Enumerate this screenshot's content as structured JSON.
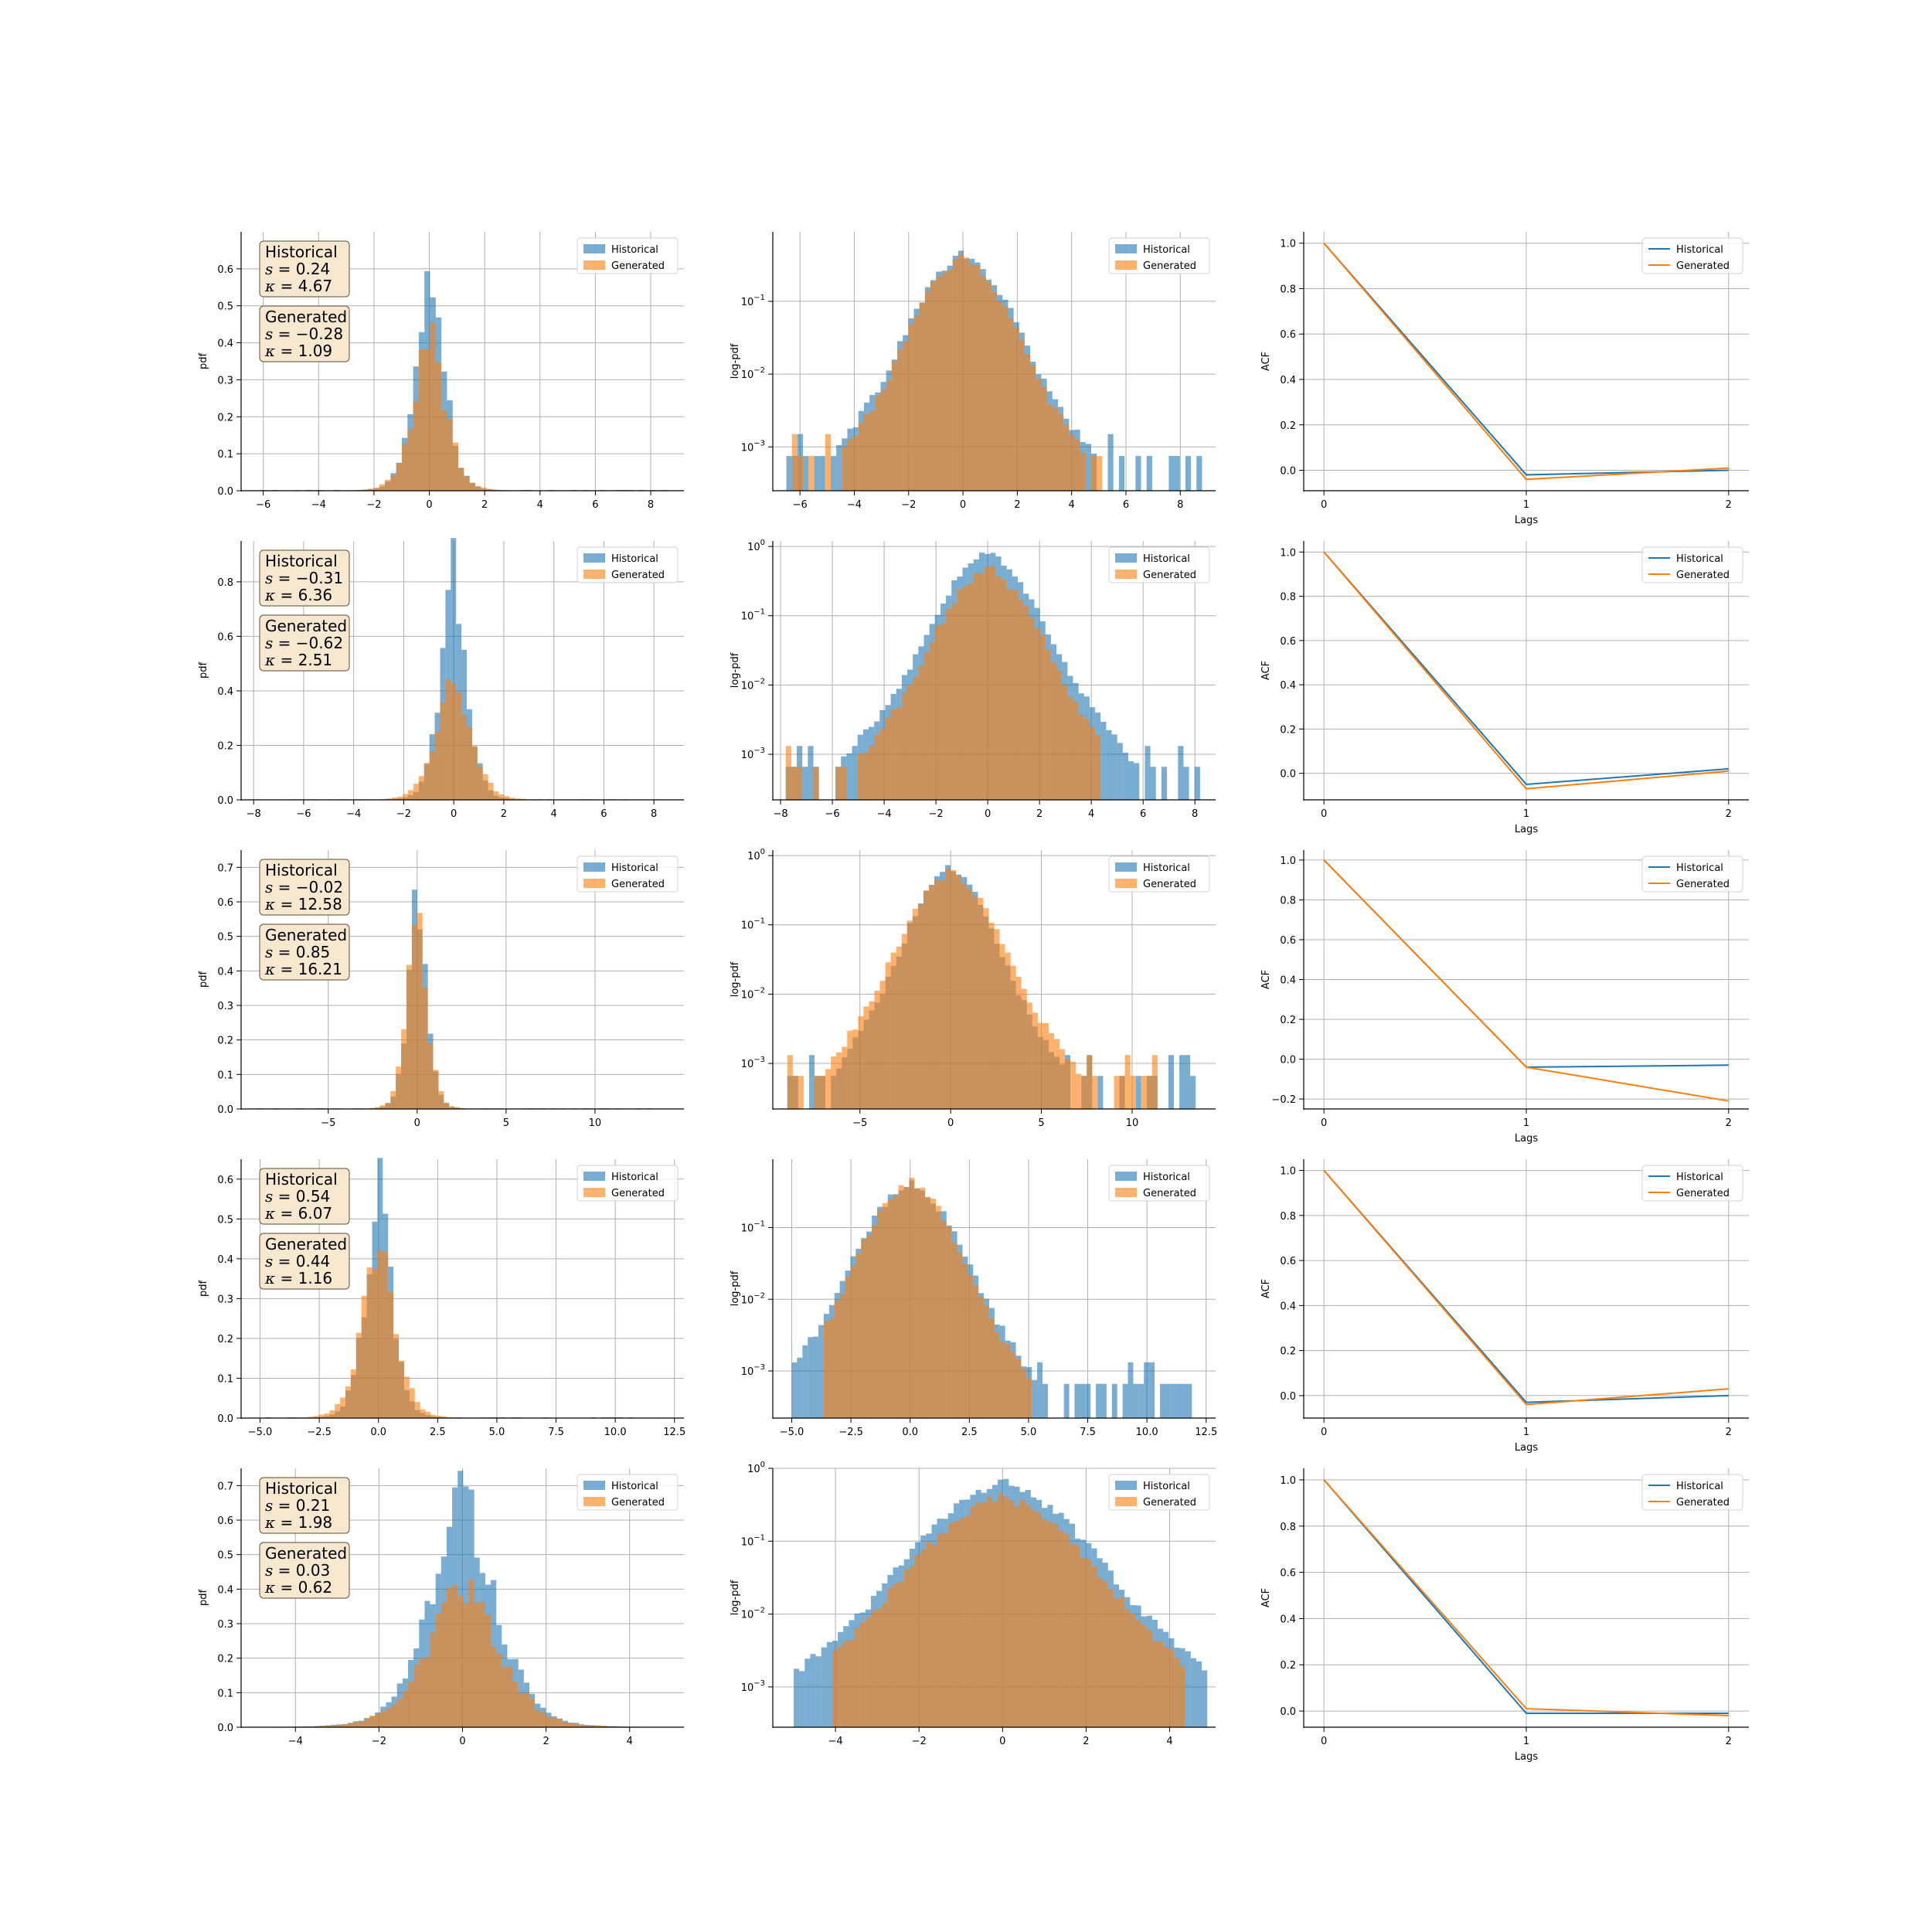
{
  "colors": {
    "historical": "#1f77b4",
    "generated": "#ff7f0e",
    "grid": "#b0b0b0",
    "stats_box_fill": "#f7e9cf",
    "stats_box_edge": "#7a6a55"
  },
  "chart_data": [
    {
      "id": "r1-pdf",
      "type": "bar",
      "row": 0,
      "col": 0,
      "yscale": "linear",
      "xlabel": "",
      "ylabel": "pdf",
      "xlim": [
        -6.8,
        9.2
      ],
      "ylim": [
        0,
        0.7
      ],
      "xticks": [
        -6,
        -4,
        -2,
        0,
        2,
        4,
        6,
        8
      ],
      "yticks": [
        0.0,
        0.1,
        0.2,
        0.3,
        0.4,
        0.5,
        0.6
      ],
      "legend": [
        "Historical",
        "Generated"
      ],
      "legend_position": "upper-right",
      "stats": [
        {
          "name": "Historical",
          "skew": "0.24",
          "kurt": "4.67"
        },
        {
          "name": "Generated",
          "skew": "−0.28",
          "kurt": "1.09"
        }
      ],
      "series": [
        {
          "name": "Historical",
          "dist": {
            "mu": 0.0,
            "sigma": 0.55,
            "peak": 0.66,
            "tail_lo": -6.5,
            "tail_hi": 8.8
          }
        },
        {
          "name": "Generated",
          "dist": {
            "mu": 0.0,
            "sigma": 0.62,
            "peak": 0.45,
            "tail_lo": -5.2,
            "tail_hi": 3.6
          }
        }
      ]
    },
    {
      "id": "r1-logpdf",
      "type": "bar",
      "row": 0,
      "col": 1,
      "yscale": "log",
      "xlabel": "",
      "ylabel": "log-pdf",
      "xlim": [
        -7.0,
        9.3
      ],
      "ylim": [
        0.00025,
        0.9
      ],
      "xticks": [
        -6,
        -4,
        -2,
        0,
        2,
        4,
        6,
        8
      ],
      "yticks": [
        "10^{-3}",
        "10^{-2}",
        "10^{-1}"
      ],
      "legend": [
        "Historical",
        "Generated"
      ],
      "legend_position": "upper-right",
      "series": [
        {
          "name": "Historical",
          "dist": {
            "mu": 0.0,
            "sigma": 0.95,
            "peak": 0.45,
            "tail_lo": -6.5,
            "tail_hi": 8.8
          }
        },
        {
          "name": "Generated",
          "dist": {
            "mu": 0.0,
            "sigma": 0.9,
            "peak": 0.43,
            "tail_lo": -6.0,
            "tail_hi": 5.0
          }
        }
      ]
    },
    {
      "id": "r1-acf",
      "type": "line",
      "row": 0,
      "col": 2,
      "yscale": "linear",
      "xlabel": "Lags",
      "ylabel": "ACF",
      "xlim": [
        -0.1,
        2.1
      ],
      "ylim": [
        -0.09,
        1.05
      ],
      "xticks": [
        0,
        1,
        2
      ],
      "yticks": [
        0.0,
        0.2,
        0.4,
        0.6,
        0.8,
        1.0
      ],
      "legend": [
        "Historical",
        "Generated"
      ],
      "legend_position": "upper-right",
      "x": [
        0,
        1,
        2
      ],
      "series": [
        {
          "name": "Historical",
          "values": [
            1.0,
            -0.02,
            0.0
          ]
        },
        {
          "name": "Generated",
          "values": [
            1.0,
            -0.04,
            0.01
          ]
        }
      ]
    },
    {
      "id": "r2-pdf",
      "type": "bar",
      "row": 1,
      "col": 0,
      "yscale": "linear",
      "xlabel": "",
      "ylabel": "pdf",
      "xlim": [
        -8.5,
        9.2
      ],
      "ylim": [
        0,
        0.95
      ],
      "xticks": [
        -8,
        -6,
        -4,
        -2,
        0,
        2,
        4,
        6,
        8
      ],
      "yticks": [
        0.0,
        0.2,
        0.4,
        0.6,
        0.8
      ],
      "legend": [
        "Historical",
        "Generated"
      ],
      "legend_position": "upper-right",
      "stats": [
        {
          "name": "Historical",
          "skew": "−0.31",
          "kurt": "6.36"
        },
        {
          "name": "Generated",
          "skew": "−0.62",
          "kurt": "2.51"
        }
      ],
      "series": [
        {
          "name": "Historical",
          "dist": {
            "mu": 0.0,
            "sigma": 0.55,
            "peak": 0.89,
            "tail_lo": -7.8,
            "tail_hi": 8.2
          }
        },
        {
          "name": "Generated",
          "dist": {
            "mu": 0.0,
            "sigma": 0.72,
            "peak": 0.5,
            "tail_lo": -6.5,
            "tail_hi": 4.5
          }
        }
      ]
    },
    {
      "id": "r2-logpdf",
      "type": "bar",
      "row": 1,
      "col": 1,
      "yscale": "log",
      "xlabel": "",
      "ylabel": "log-pdf",
      "xlim": [
        -8.3,
        8.8
      ],
      "ylim": [
        0.00022,
        1.2
      ],
      "xticks": [
        -8,
        -6,
        -4,
        -2,
        0,
        2,
        4,
        6,
        8
      ],
      "yticks": [
        "10^{-3}",
        "10^{-2}",
        "10^{-1}",
        "10^{0}"
      ],
      "legend": [
        "Historical",
        "Generated"
      ],
      "legend_position": "upper-right",
      "series": [
        {
          "name": "Historical",
          "dist": {
            "mu": 0.0,
            "sigma": 1.0,
            "peak": 0.85,
            "tail_lo": -7.8,
            "tail_hi": 8.2
          }
        },
        {
          "name": "Generated",
          "dist": {
            "mu": 0.0,
            "sigma": 0.98,
            "peak": 0.5,
            "tail_lo": -7.6,
            "tail_hi": 4.2
          }
        }
      ]
    },
    {
      "id": "r2-acf",
      "type": "line",
      "row": 1,
      "col": 2,
      "yscale": "linear",
      "xlabel": "Lags",
      "ylabel": "ACF",
      "xlim": [
        -0.1,
        2.1
      ],
      "ylim": [
        -0.12,
        1.05
      ],
      "xticks": [
        0,
        1,
        2
      ],
      "yticks": [
        0.0,
        0.2,
        0.4,
        0.6,
        0.8,
        1.0
      ],
      "legend": [
        "Historical",
        "Generated"
      ],
      "legend_position": "upper-right",
      "x": [
        0,
        1,
        2
      ],
      "series": [
        {
          "name": "Historical",
          "values": [
            1.0,
            -0.05,
            0.02
          ]
        },
        {
          "name": "Generated",
          "values": [
            1.0,
            -0.07,
            0.01
          ]
        }
      ]
    },
    {
      "id": "r3-pdf",
      "type": "bar",
      "row": 2,
      "col": 0,
      "yscale": "linear",
      "xlabel": "",
      "ylabel": "pdf",
      "xlim": [
        -9.9,
        15.0
      ],
      "ylim": [
        0,
        0.75
      ],
      "xticks": [
        -5,
        0,
        5,
        10
      ],
      "yticks": [
        0.0,
        0.1,
        0.2,
        0.3,
        0.4,
        0.5,
        0.6,
        0.7
      ],
      "legend": [
        "Historical",
        "Generated"
      ],
      "legend_position": "upper-right",
      "stats": [
        {
          "name": "Historical",
          "skew": "−0.02",
          "kurt": "12.58"
        },
        {
          "name": "Generated",
          "skew": "0.85",
          "kurt": "16.21"
        }
      ],
      "series": [
        {
          "name": "Historical",
          "dist": {
            "mu": 0.0,
            "sigma": 0.55,
            "peak": 0.69,
            "tail_lo": -9.0,
            "tail_hi": 13.5
          }
        },
        {
          "name": "Generated",
          "dist": {
            "mu": 0.0,
            "sigma": 0.6,
            "peak": 0.6,
            "tail_lo": -7.0,
            "tail_hi": 11.0
          }
        }
      ]
    },
    {
      "id": "r3-logpdf",
      "type": "bar",
      "row": 2,
      "col": 1,
      "yscale": "log",
      "xlabel": "",
      "ylabel": "log-pdf",
      "xlim": [
        -9.8,
        14.6
      ],
      "ylim": [
        0.00022,
        1.2
      ],
      "xticks": [
        -5,
        0,
        5,
        10
      ],
      "yticks": [
        "10^{-3}",
        "10^{-2}",
        "10^{-1}",
        "10^{0}"
      ],
      "legend": [
        "Historical",
        "Generated"
      ],
      "legend_position": "upper-right",
      "series": [
        {
          "name": "Historical",
          "dist": {
            "mu": 0.0,
            "sigma": 1.15,
            "peak": 0.7,
            "tail_lo": -9.0,
            "tail_hi": 13.5
          }
        },
        {
          "name": "Generated",
          "dist": {
            "mu": 0.0,
            "sigma": 1.3,
            "peak": 0.62,
            "tail_lo": -8.8,
            "tail_hi": 11.0
          }
        }
      ]
    },
    {
      "id": "r3-acf",
      "type": "line",
      "row": 2,
      "col": 2,
      "yscale": "linear",
      "xlabel": "Lags",
      "ylabel": "ACF",
      "xlim": [
        -0.1,
        2.1
      ],
      "ylim": [
        -0.25,
        1.05
      ],
      "xticks": [
        0,
        1,
        2
      ],
      "yticks": [
        -0.2,
        0.0,
        0.2,
        0.4,
        0.6,
        0.8,
        1.0
      ],
      "legend": [
        "Historical",
        "Generated"
      ],
      "legend_position": "upper-right",
      "x": [
        0,
        1,
        2
      ],
      "series": [
        {
          "name": "Historical",
          "values": [
            1.0,
            -0.04,
            -0.03
          ]
        },
        {
          "name": "Generated",
          "values": [
            1.0,
            -0.04,
            -0.21
          ]
        }
      ]
    },
    {
      "id": "r4-pdf",
      "type": "bar",
      "row": 3,
      "col": 0,
      "yscale": "linear",
      "xlabel": "",
      "ylabel": "pdf",
      "xlim": [
        -5.8,
        12.9
      ],
      "ylim": [
        0,
        0.65
      ],
      "xticks": [
        -5.0,
        -2.5,
        0.0,
        2.5,
        5.0,
        7.5,
        10.0,
        12.5
      ],
      "xtick_labels": [
        "−5.0",
        "−2.5",
        "0.0",
        "2.5",
        "5.0",
        "7.5",
        "10.0",
        "12.5"
      ],
      "yticks": [
        0.0,
        0.1,
        0.2,
        0.3,
        0.4,
        0.5,
        0.6
      ],
      "legend": [
        "Historical",
        "Generated"
      ],
      "legend_position": "upper-right",
      "stats": [
        {
          "name": "Historical",
          "skew": "0.54",
          "kurt": "6.07"
        },
        {
          "name": "Generated",
          "skew": "0.44",
          "kurt": "1.16"
        }
      ],
      "series": [
        {
          "name": "Historical",
          "dist": {
            "mu": 0.0,
            "sigma": 0.6,
            "peak": 0.62,
            "tail_lo": -5.0,
            "tail_hi": 11.9
          }
        },
        {
          "name": "Generated",
          "dist": {
            "mu": 0.0,
            "sigma": 0.75,
            "peak": 0.46,
            "tail_lo": -3.5,
            "tail_hi": 5.5
          }
        }
      ]
    },
    {
      "id": "r4-logpdf",
      "type": "bar",
      "row": 3,
      "col": 1,
      "yscale": "log",
      "xlabel": "",
      "ylabel": "log-pdf",
      "xlim": [
        -5.8,
        12.9
      ],
      "ylim": [
        0.00022,
        0.9
      ],
      "xticks": [
        -5.0,
        -2.5,
        0.0,
        2.5,
        5.0,
        7.5,
        10.0,
        12.5
      ],
      "xtick_labels": [
        "−5.0",
        "−2.5",
        "0.0",
        "2.5",
        "5.0",
        "7.5",
        "10.0",
        "12.5"
      ],
      "yticks": [
        "10^{-3}",
        "10^{-2}",
        "10^{-1}"
      ],
      "legend": [
        "Historical",
        "Generated"
      ],
      "legend_position": "upper-right",
      "series": [
        {
          "name": "Historical",
          "dist": {
            "mu": 0.0,
            "sigma": 1.05,
            "peak": 0.46,
            "tail_lo": -5.0,
            "tail_hi": 11.9
          }
        },
        {
          "name": "Generated",
          "dist": {
            "mu": 0.0,
            "sigma": 1.0,
            "peak": 0.45,
            "tail_lo": -3.5,
            "tail_hi": 5.0
          }
        }
      ]
    },
    {
      "id": "r4-acf",
      "type": "line",
      "row": 3,
      "col": 2,
      "yscale": "linear",
      "xlabel": "Lags",
      "ylabel": "ACF",
      "xlim": [
        -0.1,
        2.1
      ],
      "ylim": [
        -0.1,
        1.05
      ],
      "xticks": [
        0,
        1,
        2
      ],
      "yticks": [
        0.0,
        0.2,
        0.4,
        0.6,
        0.8,
        1.0
      ],
      "legend": [
        "Historical",
        "Generated"
      ],
      "legend_position": "upper-right",
      "x": [
        0,
        1,
        2
      ],
      "series": [
        {
          "name": "Historical",
          "values": [
            1.0,
            -0.03,
            0.0
          ]
        },
        {
          "name": "Generated",
          "values": [
            1.0,
            -0.04,
            0.03
          ]
        }
      ]
    },
    {
      "id": "r5-pdf",
      "type": "bar",
      "row": 4,
      "col": 0,
      "yscale": "linear",
      "xlabel": "",
      "ylabel": "pdf",
      "xlim": [
        -5.3,
        5.3
      ],
      "ylim": [
        0,
        0.75
      ],
      "xticks": [
        -4,
        -2,
        0,
        2,
        4
      ],
      "yticks": [
        0.0,
        0.1,
        0.2,
        0.3,
        0.4,
        0.5,
        0.6,
        0.7
      ],
      "legend": [
        "Historical",
        "Generated"
      ],
      "legend_position": "upper-right",
      "stats": [
        {
          "name": "Historical",
          "skew": "0.21",
          "kurt": "1.98"
        },
        {
          "name": "Generated",
          "skew": "0.03",
          "kurt": "0.62"
        }
      ],
      "series": [
        {
          "name": "Historical",
          "dist": {
            "mu": 0.0,
            "sigma": 0.85,
            "peak": 0.69,
            "tail_lo": -5.0,
            "tail_hi": 4.9
          }
        },
        {
          "name": "Generated",
          "dist": {
            "mu": 0.0,
            "sigma": 0.92,
            "peak": 0.43,
            "tail_lo": -4.5,
            "tail_hi": 4.5
          }
        }
      ]
    },
    {
      "id": "r5-logpdf",
      "type": "bar",
      "row": 4,
      "col": 1,
      "yscale": "log",
      "xlabel": "",
      "ylabel": "log-pdf",
      "xlim": [
        -5.5,
        5.1
      ],
      "ylim": [
        0.00028,
        1.0
      ],
      "xticks": [
        -4,
        -2,
        0,
        2,
        4
      ],
      "yticks": [
        "10^{-3}",
        "10^{-2}",
        "10^{-1}",
        "10^{0}"
      ],
      "legend": [
        "Historical",
        "Generated"
      ],
      "legend_position": "upper-right",
      "series": [
        {
          "name": "Historical",
          "dist": {
            "mu": 0.0,
            "sigma": 1.05,
            "peak": 0.65,
            "tail_lo": -5.0,
            "tail_hi": 4.9
          }
        },
        {
          "name": "Generated",
          "dist": {
            "mu": 0.0,
            "sigma": 1.05,
            "peak": 0.42,
            "tail_lo": -4.0,
            "tail_hi": 4.3
          }
        }
      ]
    },
    {
      "id": "r5-acf",
      "type": "line",
      "row": 4,
      "col": 2,
      "yscale": "linear",
      "xlabel": "Lags",
      "ylabel": "ACF",
      "xlim": [
        -0.1,
        2.1
      ],
      "ylim": [
        -0.07,
        1.05
      ],
      "xticks": [
        0,
        1,
        2
      ],
      "yticks": [
        0.0,
        0.2,
        0.4,
        0.6,
        0.8,
        1.0
      ],
      "legend": [
        "Historical",
        "Generated"
      ],
      "legend_position": "upper-right",
      "x": [
        0,
        1,
        2
      ],
      "series": [
        {
          "name": "Historical",
          "values": [
            1.0,
            -0.01,
            -0.01
          ]
        },
        {
          "name": "Generated",
          "values": [
            1.0,
            0.01,
            -0.02
          ]
        }
      ]
    }
  ]
}
